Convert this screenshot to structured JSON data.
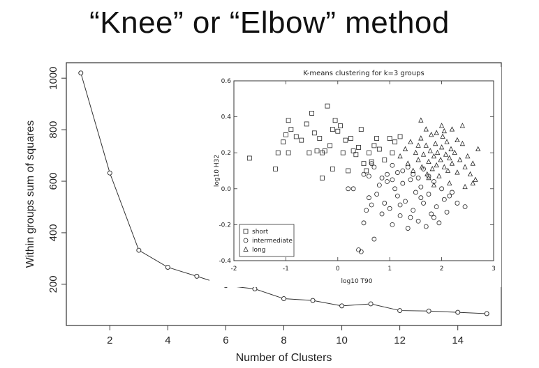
{
  "slide_title": "“Knee” or “Elbow” method",
  "chart_data": [
    {
      "type": "line",
      "title": "",
      "xlabel": "Number of Clusters",
      "ylabel": "Within groups sum of squares",
      "xlim": [
        0.5,
        15.5
      ],
      "ylim": [
        40,
        1060
      ],
      "xticks": [
        2,
        4,
        6,
        8,
        10,
        12,
        14
      ],
      "yticks": [
        200,
        400,
        600,
        800,
        1000
      ],
      "x": [
        1,
        2,
        3,
        4,
        5,
        6,
        7,
        8,
        9,
        10,
        11,
        12,
        13,
        14,
        15
      ],
      "values": [
        1020,
        632,
        332,
        266,
        231,
        195,
        182,
        144,
        137,
        116,
        124,
        98,
        96,
        91,
        86
      ],
      "marker": "open-circle",
      "grid": false
    },
    {
      "type": "scatter",
      "title": "K-means clustering for k=3 groups",
      "xlabel": "log10 T90",
      "ylabel": "log10 H32",
      "xlim": [
        -2,
        3
      ],
      "ylim": [
        -0.4,
        0.6
      ],
      "xticks": [
        -2,
        -1,
        0,
        1,
        2,
        3
      ],
      "yticks": [
        -0.4,
        -0.2,
        0.0,
        0.2,
        0.4,
        0.6
      ],
      "legend_position": "bottom-left",
      "series": [
        {
          "name": "short",
          "marker": "square",
          "points": [
            [
              -1.7,
              0.17
            ],
            [
              -1.2,
              0.11
            ],
            [
              -1.15,
              0.2
            ],
            [
              -1.05,
              0.26
            ],
            [
              -1.0,
              0.3
            ],
            [
              -0.95,
              0.38
            ],
            [
              -0.9,
              0.33
            ],
            [
              -0.8,
              0.29
            ],
            [
              -0.7,
              0.27
            ],
            [
              -0.6,
              0.36
            ],
            [
              -0.5,
              0.42
            ],
            [
              -0.45,
              0.31
            ],
            [
              -0.35,
              0.28
            ],
            [
              -0.25,
              0.21
            ],
            [
              -0.2,
              0.46
            ],
            [
              -0.1,
              0.33
            ],
            [
              -0.05,
              0.38
            ],
            [
              0.0,
              0.32
            ],
            [
              0.05,
              0.35
            ],
            [
              0.1,
              0.2
            ],
            [
              0.15,
              0.27
            ],
            [
              0.25,
              0.28
            ],
            [
              0.3,
              0.21
            ],
            [
              0.35,
              0.19
            ],
            [
              0.4,
              0.23
            ],
            [
              0.5,
              0.14
            ],
            [
              0.55,
              0.1
            ],
            [
              0.6,
              0.2
            ],
            [
              0.7,
              0.24
            ],
            [
              0.8,
              0.22
            ],
            [
              0.9,
              0.16
            ],
            [
              1.0,
              0.28
            ],
            [
              0.45,
              0.33
            ],
            [
              -0.3,
              0.2
            ],
            [
              -0.55,
              0.2
            ],
            [
              -0.15,
              0.24
            ],
            [
              0.2,
              0.1
            ],
            [
              -0.1,
              0.11
            ],
            [
              0.65,
              0.15
            ],
            [
              1.1,
              0.26
            ],
            [
              -0.95,
              0.2
            ],
            [
              -0.4,
              0.21
            ],
            [
              1.2,
              0.29
            ],
            [
              -0.3,
              0.06
            ],
            [
              0.75,
              0.28
            ],
            [
              1.05,
              0.2
            ]
          ]
        },
        {
          "name": "intermediate",
          "marker": "circle",
          "points": [
            [
              0.4,
              -0.34
            ],
            [
              0.45,
              -0.35
            ],
            [
              0.5,
              -0.19
            ],
            [
              0.55,
              -0.12
            ],
            [
              0.6,
              -0.05
            ],
            [
              0.65,
              -0.09
            ],
            [
              0.7,
              -0.28
            ],
            [
              0.75,
              -0.03
            ],
            [
              0.8,
              0.02
            ],
            [
              0.85,
              -0.14
            ],
            [
              0.9,
              -0.08
            ],
            [
              0.95,
              0.04
            ],
            [
              1.0,
              -0.11
            ],
            [
              1.05,
              -0.2
            ],
            [
              1.1,
              0.0
            ],
            [
              1.15,
              -0.04
            ],
            [
              1.2,
              -0.15
            ],
            [
              1.25,
              0.03
            ],
            [
              1.3,
              -0.07
            ],
            [
              1.35,
              -0.22
            ],
            [
              1.4,
              0.05
            ],
            [
              1.45,
              -0.12
            ],
            [
              1.5,
              -0.02
            ],
            [
              1.55,
              -0.18
            ],
            [
              1.6,
              0.01
            ],
            [
              1.65,
              -0.08
            ],
            [
              1.7,
              -0.21
            ],
            [
              1.75,
              -0.03
            ],
            [
              1.8,
              -0.14
            ],
            [
              1.85,
              0.04
            ],
            [
              1.9,
              -0.1
            ],
            [
              1.95,
              -0.19
            ],
            [
              2.0,
              0.0
            ],
            [
              2.05,
              -0.06
            ],
            [
              2.1,
              -0.13
            ],
            [
              2.2,
              -0.02
            ],
            [
              2.3,
              -0.08
            ],
            [
              2.45,
              -0.1
            ],
            [
              0.85,
              0.06
            ],
            [
              0.95,
              0.08
            ],
            [
              1.05,
              0.05
            ],
            [
              1.15,
              0.09
            ],
            [
              1.25,
              0.1
            ],
            [
              1.35,
              0.12
            ],
            [
              0.6,
              0.07
            ],
            [
              0.7,
              0.12
            ],
            [
              1.45,
              0.08
            ],
            [
              1.55,
              0.06
            ],
            [
              1.65,
              0.11
            ],
            [
              1.75,
              0.07
            ],
            [
              0.3,
              0.0
            ],
            [
              0.2,
              0.0
            ],
            [
              0.5,
              0.08
            ],
            [
              0.65,
              0.14
            ],
            [
              1.05,
              0.13
            ],
            [
              1.2,
              -0.09
            ],
            [
              1.4,
              -0.16
            ],
            [
              1.6,
              -0.05
            ],
            [
              1.85,
              -0.16
            ],
            [
              2.15,
              -0.04
            ]
          ]
        },
        {
          "name": "long",
          "marker": "triangle",
          "points": [
            [
              1.2,
              0.18
            ],
            [
              1.3,
              0.22
            ],
            [
              1.35,
              0.14
            ],
            [
              1.4,
              0.26
            ],
            [
              1.45,
              0.1
            ],
            [
              1.5,
              0.2
            ],
            [
              1.55,
              0.16
            ],
            [
              1.6,
              0.28
            ],
            [
              1.62,
              0.12
            ],
            [
              1.65,
              0.19
            ],
            [
              1.7,
              0.24
            ],
            [
              1.72,
              0.08
            ],
            [
              1.75,
              0.15
            ],
            [
              1.78,
              0.21
            ],
            [
              1.8,
              0.3
            ],
            [
              1.82,
              0.11
            ],
            [
              1.85,
              0.18
            ],
            [
              1.88,
              0.25
            ],
            [
              1.9,
              0.13
            ],
            [
              1.92,
              0.2
            ],
            [
              1.95,
              0.07
            ],
            [
              1.98,
              0.16
            ],
            [
              2.0,
              0.23
            ],
            [
              2.02,
              0.29
            ],
            [
              2.05,
              0.12
            ],
            [
              2.08,
              0.19
            ],
            [
              2.1,
              0.26
            ],
            [
              2.12,
              0.1
            ],
            [
              2.15,
              0.17
            ],
            [
              2.18,
              0.22
            ],
            [
              2.2,
              0.14
            ],
            [
              2.25,
              0.2
            ],
            [
              2.3,
              0.09
            ],
            [
              2.35,
              0.16
            ],
            [
              2.4,
              0.25
            ],
            [
              2.45,
              0.12
            ],
            [
              2.5,
              0.18
            ],
            [
              2.55,
              0.08
            ],
            [
              2.6,
              0.14
            ],
            [
              2.65,
              0.05
            ],
            [
              2.7,
              0.22
            ],
            [
              2.4,
              0.35
            ],
            [
              2.2,
              0.33
            ],
            [
              1.6,
              0.38
            ],
            [
              1.9,
              0.31
            ],
            [
              2.05,
              0.32
            ],
            [
              2.6,
              0.03
            ],
            [
              2.3,
              0.27
            ],
            [
              1.7,
              0.33
            ],
            [
              2.0,
              0.35
            ],
            [
              1.55,
              0.24
            ],
            [
              1.75,
              0.06
            ],
            [
              2.15,
              0.03
            ],
            [
              2.45,
              0.01
            ],
            [
              1.85,
              0.02
            ]
          ]
        }
      ]
    }
  ]
}
